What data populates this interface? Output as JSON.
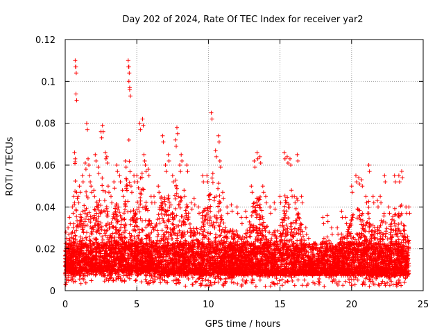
{
  "chart_data": {
    "type": "scatter",
    "title": "Day 202 of 2024, Rate Of TEC Index for receiver yar2",
    "xlabel": "GPS time / hours",
    "ylabel": "ROTI / TECUs",
    "xlim": [
      0,
      25
    ],
    "ylim": [
      0,
      0.12
    ],
    "x_ticks": [
      0,
      5,
      10,
      15,
      20,
      25
    ],
    "x_tick_labels": [
      "0",
      "5",
      "10",
      "15",
      "20",
      "25"
    ],
    "y_ticks": [
      0,
      0.02,
      0.04,
      0.06,
      0.08,
      0.1,
      0.12
    ],
    "y_tick_labels": [
      "0",
      "0.02",
      "0.04",
      "0.06",
      "0.08",
      "0.1",
      "0.12"
    ],
    "grid": true,
    "marker": "+",
    "color": "#ff0000",
    "series": [
      {
        "x": [
          0.05,
          0.1,
          0.2,
          0.3,
          0.5,
          0.6,
          0.65,
          0.7,
          0.72,
          0.75,
          0.8,
          0.9,
          1.0,
          1.2,
          1.4,
          1.5,
          1.6,
          1.7,
          1.8,
          2.0,
          2.1,
          2.3,
          2.5,
          2.6,
          2.8,
          2.9,
          3.0,
          3.2,
          3.4,
          3.6,
          3.8,
          4.0,
          4.2,
          4.4,
          4.42,
          4.45,
          4.5,
          4.6,
          4.8,
          5.0,
          5.2,
          5.4,
          5.5,
          5.6,
          5.8,
          6.0,
          6.2,
          6.5,
          6.8,
          7.0,
          7.2,
          7.5,
          7.7,
          7.8,
          8.0,
          8.1,
          8.3,
          8.5,
          8.8,
          9.0,
          9.3,
          9.6,
          9.9,
          10.2,
          10.5,
          10.7,
          10.8,
          11.0,
          11.3,
          11.6,
          12.0,
          12.3,
          12.6,
          13.0,
          13.2,
          13.4,
          13.6,
          13.8,
          14.0,
          14.3,
          14.6,
          15.0,
          15.3,
          15.5,
          15.7,
          15.8,
          16.0,
          16.2,
          16.5,
          16.8,
          17.0,
          17.3,
          17.6,
          18.0,
          18.3,
          18.6,
          19.0,
          19.3,
          19.6,
          20.0,
          20.3,
          20.5,
          20.7,
          21.0,
          21.2,
          21.5,
          21.8,
          22.0,
          22.3,
          22.6,
          23.0,
          23.3,
          23.5,
          23.8,
          24.0
        ],
        "y": [
          0.028,
          0.021,
          0.03,
          0.035,
          0.04,
          0.045,
          0.066,
          0.11,
          0.107,
          0.094,
          0.047,
          0.045,
          0.05,
          0.055,
          0.061,
          0.08,
          0.063,
          0.055,
          0.05,
          0.048,
          0.065,
          0.059,
          0.076,
          0.079,
          0.066,
          0.064,
          0.05,
          0.045,
          0.052,
          0.06,
          0.055,
          0.048,
          0.062,
          0.11,
          0.107,
          0.1,
          0.096,
          0.05,
          0.055,
          0.055,
          0.08,
          0.082,
          0.065,
          0.06,
          0.058,
          0.045,
          0.045,
          0.05,
          0.074,
          0.06,
          0.065,
          0.055,
          0.072,
          0.078,
          0.06,
          0.065,
          0.048,
          0.06,
          0.042,
          0.044,
          0.04,
          0.055,
          0.055,
          0.085,
          0.067,
          0.074,
          0.062,
          0.047,
          0.04,
          0.041,
          0.04,
          0.035,
          0.038,
          0.05,
          0.062,
          0.066,
          0.064,
          0.05,
          0.045,
          0.04,
          0.042,
          0.045,
          0.066,
          0.064,
          0.063,
          0.048,
          0.045,
          0.065,
          0.045,
          0.03,
          0.025,
          0.02,
          0.02,
          0.035,
          0.036,
          0.03,
          0.03,
          0.038,
          0.035,
          0.05,
          0.055,
          0.054,
          0.053,
          0.045,
          0.06,
          0.045,
          0.043,
          0.045,
          0.055,
          0.04,
          0.055,
          0.055,
          0.057,
          0.04,
          0.04
        ],
        "note_base": [
          0.008,
          0.01,
          0.009,
          0.009,
          0.008,
          0.009,
          0.009,
          0.01,
          0.01,
          0.009,
          0.008,
          0.008,
          0.009,
          0.009,
          0.01,
          0.009,
          0.009,
          0.01,
          0.01,
          0.009,
          0.01,
          0.009,
          0.01,
          0.009,
          0.01,
          0.009,
          0.01,
          0.009,
          0.01,
          0.009,
          0.01,
          0.009,
          0.01,
          0.009,
          0.009,
          0.009,
          0.01,
          0.009,
          0.01,
          0.009,
          0.01,
          0.009,
          0.009,
          0.01,
          0.009,
          0.01,
          0.009,
          0.009,
          0.008,
          0.008,
          0.009,
          0.009,
          0.009,
          0.009,
          0.009,
          0.008,
          0.008,
          0.008,
          0.009,
          0.008,
          0.008,
          0.008,
          0.008,
          0.008,
          0.009,
          0.008,
          0.009,
          0.008,
          0.008,
          0.008,
          0.008,
          0.008,
          0.008,
          0.009,
          0.008,
          0.008,
          0.009,
          0.008,
          0.008,
          0.008,
          0.008,
          0.008,
          0.008,
          0.008,
          0.008,
          0.008,
          0.008,
          0.008,
          0.008,
          0.008,
          0.008,
          0.008,
          0.008,
          0.008,
          0.008,
          0.008,
          0.008,
          0.008,
          0.008,
          0.008,
          0.008,
          0.008,
          0.008,
          0.008,
          0.008,
          0.008,
          0.008,
          0.008,
          0.008,
          0.008,
          0.008,
          0.008,
          0.008,
          0.008,
          0.008
        ]
      }
    ]
  }
}
